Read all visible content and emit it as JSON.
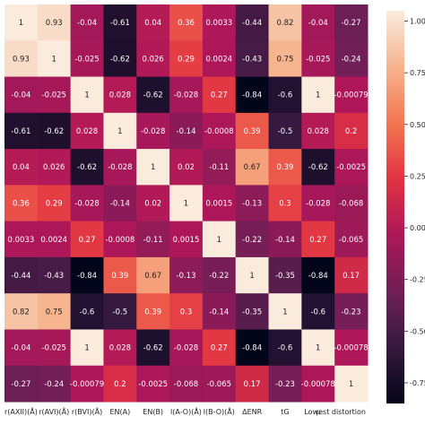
{
  "chart_data": {
    "type": "heatmap",
    "title": "",
    "xlabel": "",
    "ylabel": "",
    "x_labels": [
      "r(AXII)(Å)",
      "r(AVI)(Å)",
      "r(BVI)(Å)",
      "EN(A)",
      "EN(B)",
      "l(A-O)(Å)",
      "l(B-O)(Å)",
      "ΔENR",
      "tG",
      "μ",
      "Lowest distortion"
    ],
    "y_labels": [
      "",
      "",
      "",
      "",
      "",
      "",
      "",
      "",
      "",
      "",
      ""
    ],
    "values": [
      [
        1,
        0.93,
        -0.04,
        -0.61,
        0.04,
        0.36,
        0.0033,
        -0.44,
        0.82,
        -0.04,
        -0.27
      ],
      [
        0.93,
        1,
        -0.025,
        -0.62,
        0.026,
        0.29,
        0.0024,
        -0.43,
        0.75,
        -0.025,
        -0.24
      ],
      [
        -0.04,
        -0.025,
        1,
        0.028,
        -0.62,
        -0.028,
        0.27,
        -0.84,
        -0.6,
        1,
        -0.00079
      ],
      [
        -0.61,
        -0.62,
        0.028,
        1,
        -0.028,
        -0.14,
        -0.0008,
        0.39,
        -0.5,
        0.028,
        0.2
      ],
      [
        0.04,
        0.026,
        -0.62,
        -0.028,
        1,
        0.02,
        -0.11,
        0.67,
        0.39,
        -0.62,
        -0.0025
      ],
      [
        0.36,
        0.29,
        -0.028,
        -0.14,
        0.02,
        1,
        0.0015,
        -0.13,
        0.3,
        -0.028,
        -0.068
      ],
      [
        0.0033,
        0.0024,
        0.27,
        -0.0008,
        -0.11,
        0.0015,
        1,
        -0.22,
        -0.14,
        0.27,
        -0.065
      ],
      [
        -0.44,
        -0.43,
        -0.84,
        0.39,
        0.67,
        -0.13,
        -0.22,
        1,
        -0.35,
        -0.84,
        0.17
      ],
      [
        0.82,
        0.75,
        -0.6,
        -0.5,
        0.39,
        0.3,
        -0.14,
        -0.35,
        1,
        -0.6,
        -0.23
      ],
      [
        -0.04,
        -0.025,
        1,
        0.028,
        -0.62,
        -0.028,
        0.27,
        -0.84,
        -0.6,
        1,
        -0.00078
      ],
      [
        -0.27,
        -0.24,
        -0.00079,
        0.2,
        -0.0025,
        -0.068,
        -0.065,
        0.17,
        -0.23,
        -0.00078,
        1
      ]
    ],
    "colorbar": {
      "min": -0.75,
      "max": 1.0,
      "ticks": [
        1.0,
        0.75,
        0.5,
        0.25,
        0.0,
        -0.25,
        -0.5,
        -0.75
      ],
      "tick_labels": [
        "1.00",
        "0.75",
        "0.50",
        "0.25",
        "0.00",
        "-0.25",
        "-0.50",
        "-0.75"
      ]
    },
    "colormap": "rocket",
    "colormap_stops": [
      "#03051a",
      "#36193e",
      "#701f57",
      "#ad1759",
      "#e13342",
      "#f37651",
      "#f6b48f",
      "#faebdd"
    ],
    "grid": false,
    "legend": "colorbar right"
  }
}
